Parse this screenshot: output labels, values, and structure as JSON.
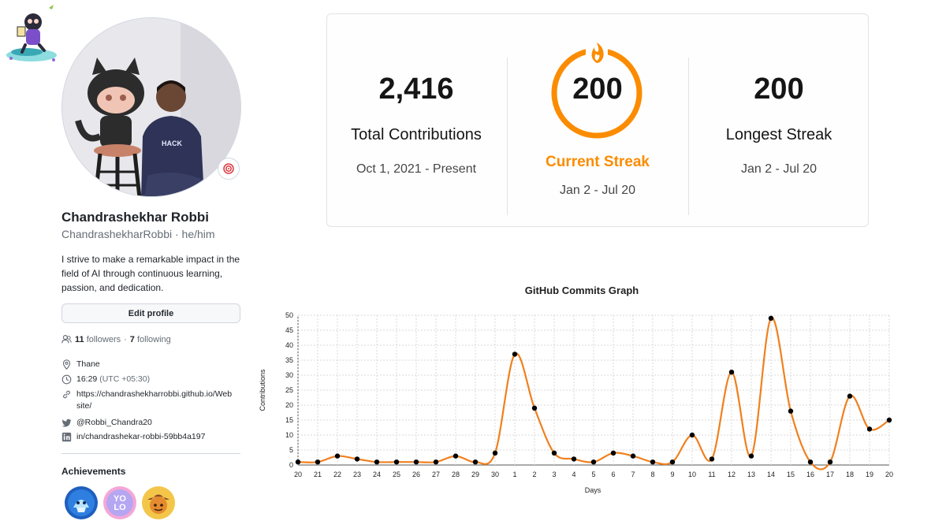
{
  "profile": {
    "name": "Chandrashekhar Robbi",
    "login": "ChandrashekharRobbi · he/him",
    "bio": "I strive to make a remarkable impact in the field of AI through continuous learning, passion, and dedication.",
    "edit_label": "Edit profile",
    "followers_count": "11",
    "followers_word": "followers",
    "sep": "·",
    "following_count": "7",
    "following_word": "following",
    "location": "Thane",
    "local_time": "16:29",
    "timezone": "(UTC +05:30)",
    "website_line1": "https://chandrashekharrobbi.github.io/Web",
    "website_line2": "site/",
    "twitter": "@Robbi_Chandra20",
    "linkedin": "in/chandrashekar-robbi-59bb4a197",
    "achievements_title": "Achievements"
  },
  "streak": {
    "total": "2,416",
    "total_label": "Total Contributions",
    "total_range": "Oct 1, 2021 - Present",
    "current": "200",
    "current_label": "Current Streak",
    "current_range": "Jan 2 - Jul 20",
    "longest": "200",
    "longest_label": "Longest Streak",
    "longest_range": "Jan 2 - Jul 20",
    "accent": "#fb8c00"
  },
  "chart_data": {
    "type": "line",
    "title": "GitHub Commits Graph",
    "xlabel": "Days",
    "ylabel": "Contributions",
    "ylim": [
      0,
      50
    ],
    "yticks": [
      0,
      5,
      10,
      15,
      20,
      25,
      30,
      35,
      40,
      45,
      50
    ],
    "grid": true,
    "line_color": "#f0801e",
    "point_color": "#000000",
    "categories": [
      "20",
      "21",
      "22",
      "23",
      "24",
      "25",
      "26",
      "27",
      "28",
      "29",
      "30",
      "1",
      "2",
      "3",
      "4",
      "5",
      "6",
      "7",
      "8",
      "9",
      "10",
      "11",
      "12",
      "13",
      "14",
      "15",
      "16",
      "17",
      "18",
      "19",
      "20"
    ],
    "values": [
      1,
      1,
      3,
      2,
      1,
      1,
      1,
      1,
      3,
      1,
      4,
      37,
      19,
      4,
      2,
      1,
      4,
      3,
      1,
      1,
      10,
      2,
      31,
      3,
      49,
      18,
      1,
      1,
      23,
      12,
      15
    ]
  }
}
